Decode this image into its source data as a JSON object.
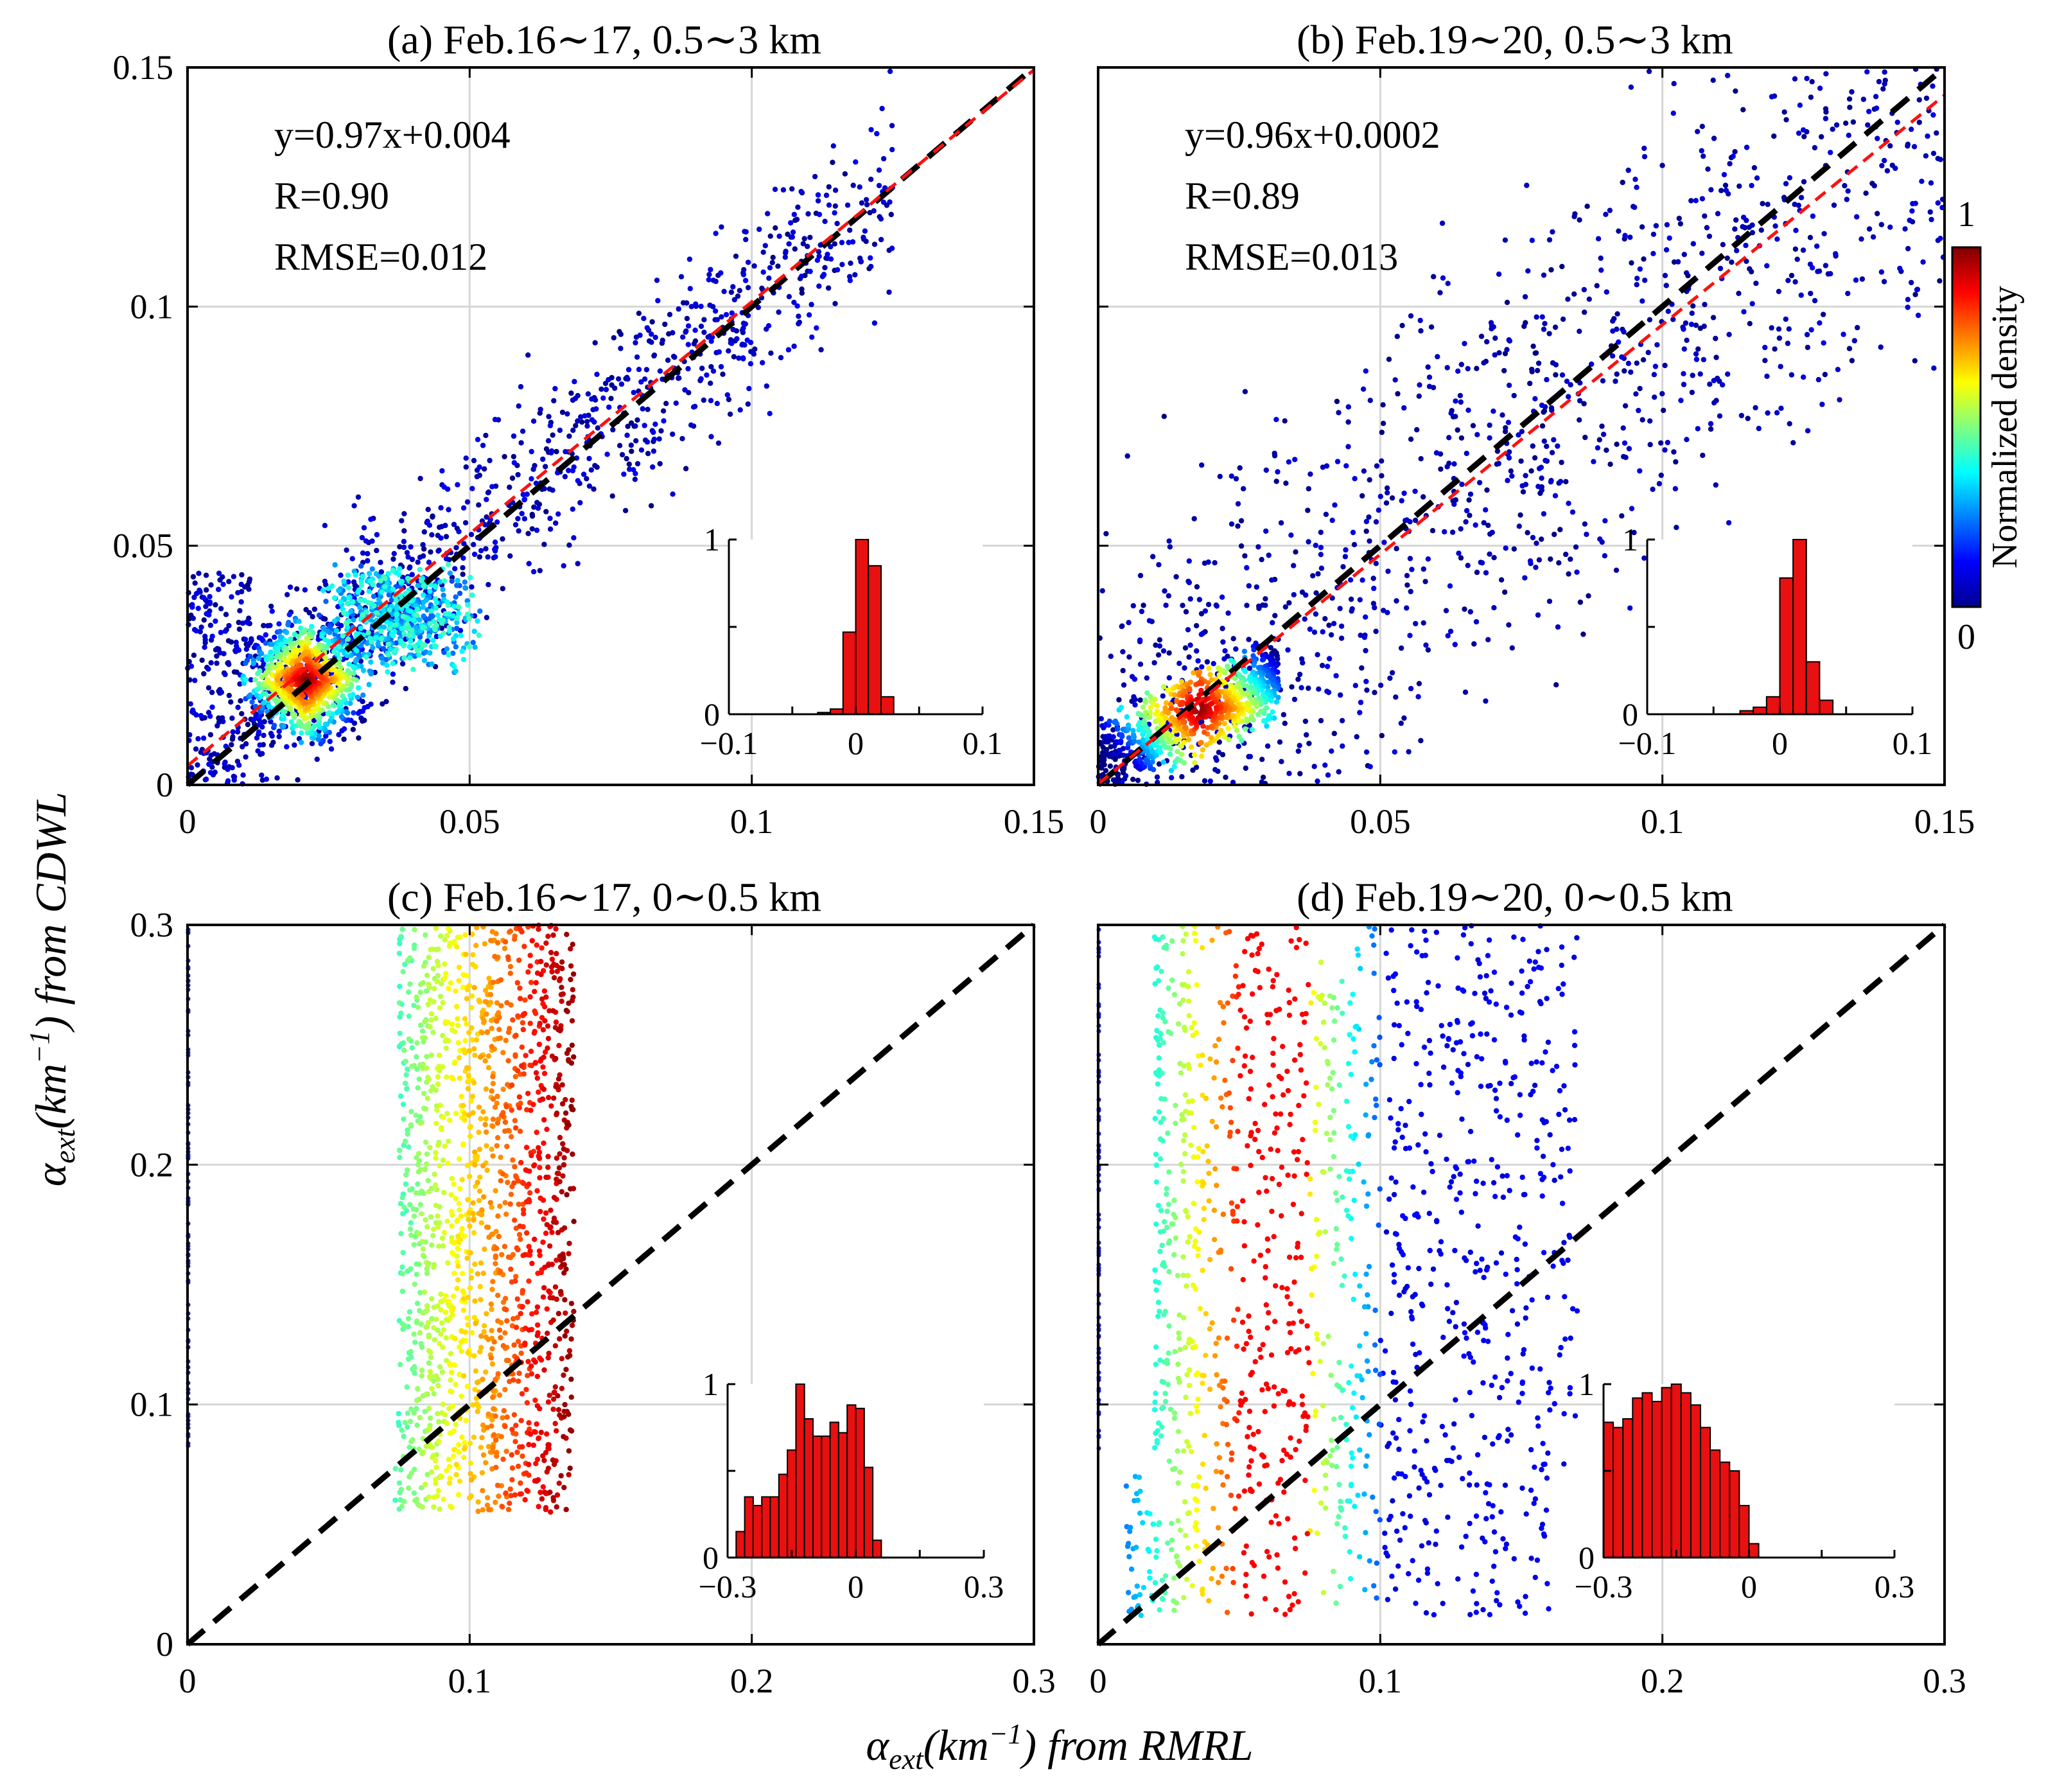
{
  "figure": {
    "xlabel_main": "α",
    "xlabel_sub": "ext",
    "xlabel_unit": "(km",
    "xlabel_exp": "−1",
    "xlabel_tail": ")  from RMRL",
    "ylabel_main": "α",
    "ylabel_sub": "ext",
    "ylabel_unit": "(km",
    "ylabel_exp": "−1",
    "ylabel_tail": ")  from CDWL",
    "colorbar": {
      "label": "Normalized density",
      "max": "1",
      "min": "0"
    }
  },
  "chart_data": [
    {
      "type": "scatter",
      "panel": "a",
      "title": "(a) Feb.16∼17, 0.5∼3 km",
      "xlim": [
        0,
        0.15
      ],
      "ylim": [
        0,
        0.15
      ],
      "xticks": [
        "0",
        "0.05",
        "0.1",
        "0.15"
      ],
      "yticks": [
        "0",
        "0.05",
        "0.1",
        "0.15"
      ],
      "fit": {
        "slope": 0.97,
        "intercept": 0.004
      },
      "stats": [
        "y=0.97x+0.004",
        "R=0.90",
        "RMSE=0.012"
      ],
      "histogram": {
        "xlim": [
          -0.1,
          0.1
        ],
        "ylim": [
          0,
          1
        ],
        "xticks": [
          "−0.1",
          "0",
          "0.1"
        ],
        "yticks": [
          "0",
          "1"
        ],
        "bin_centers": [
          -0.025,
          -0.015,
          -0.005,
          0.005,
          0.015,
          0.025
        ],
        "values": [
          0.01,
          0.03,
          0.47,
          1.0,
          0.85,
          0.1
        ]
      }
    },
    {
      "type": "scatter",
      "panel": "b",
      "title": "(b) Feb.19∼20, 0.5∼3 km",
      "xlim": [
        0,
        0.15
      ],
      "ylim": [
        0,
        0.15
      ],
      "xticks": [
        "0",
        "0.05",
        "0.1",
        "0.15"
      ],
      "yticks": [
        "0",
        "0.05",
        "0.1",
        "0.15"
      ],
      "fit": {
        "slope": 0.96,
        "intercept": 0.0002
      },
      "stats": [
        "y=0.96x+0.0002",
        "R=0.89",
        "RMSE=0.013"
      ],
      "histogram": {
        "xlim": [
          -0.1,
          0.1
        ],
        "ylim": [
          0,
          1
        ],
        "xticks": [
          "−0.1",
          "0",
          "0.1"
        ],
        "yticks": [
          "0",
          "1"
        ],
        "bin_centers": [
          -0.025,
          -0.015,
          -0.005,
          0.005,
          0.015,
          0.025,
          0.035
        ],
        "values": [
          0.02,
          0.04,
          0.1,
          0.78,
          1.0,
          0.3,
          0.08
        ]
      }
    },
    {
      "type": "scatter",
      "panel": "c",
      "title": "(c) Feb.16∼17, 0∼0.5 km",
      "xlim": [
        0,
        0.3
      ],
      "ylim": [
        0,
        0.3
      ],
      "xticks": [
        "0",
        "0.1",
        "0.2",
        "0.3"
      ],
      "yticks": [
        "0",
        "0.1",
        "0.2",
        "0.3"
      ],
      "histogram": {
        "xlim": [
          -0.3,
          0.3
        ],
        "ylim": [
          0,
          1
        ],
        "xticks": [
          "−0.3",
          "0",
          "0.3"
        ],
        "yticks": [
          "0",
          "1"
        ],
        "bin_centers": [
          -0.27,
          -0.25,
          -0.23,
          -0.21,
          -0.19,
          -0.17,
          -0.15,
          -0.13,
          -0.11,
          -0.09,
          -0.07,
          -0.05,
          -0.03,
          -0.01,
          0.01,
          0.03,
          0.05
        ],
        "values": [
          0.15,
          0.35,
          0.3,
          0.35,
          0.35,
          0.48,
          0.62,
          1.0,
          0.8,
          0.7,
          0.7,
          0.78,
          0.72,
          0.88,
          0.86,
          0.52,
          0.1
        ]
      }
    },
    {
      "type": "scatter",
      "panel": "d",
      "title": "(d) Feb.19∼20, 0∼0.5 km",
      "xlim": [
        0,
        0.3
      ],
      "ylim": [
        0,
        0.3
      ],
      "xticks": [
        "0",
        "0.1",
        "0.2",
        "0.3"
      ],
      "yticks": [
        "0",
        "0.1",
        "0.2",
        "0.3"
      ],
      "histogram": {
        "xlim": [
          -0.3,
          0.3
        ],
        "ylim": [
          0,
          1
        ],
        "xticks": [
          "−0.3",
          "0",
          "0.3"
        ],
        "yticks": [
          "0",
          "1"
        ],
        "bin_centers": [
          -0.29,
          -0.27,
          -0.25,
          -0.23,
          -0.21,
          -0.19,
          -0.17,
          -0.15,
          -0.13,
          -0.11,
          -0.09,
          -0.07,
          -0.05,
          -0.03,
          -0.01,
          0.01
        ],
        "values": [
          0.78,
          0.75,
          0.8,
          0.92,
          0.95,
          0.9,
          0.98,
          1.0,
          0.95,
          0.88,
          0.75,
          0.62,
          0.55,
          0.5,
          0.3,
          0.08
        ]
      }
    }
  ]
}
